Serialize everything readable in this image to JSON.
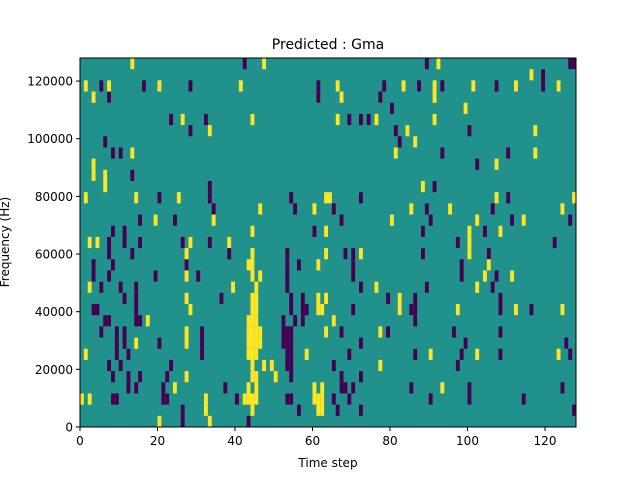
{
  "chart_data": {
    "type": "heatmap",
    "title": "Predicted : Gma",
    "xlabel": "Time step",
    "ylabel": "Frequency (Hz)",
    "xlim": [
      0,
      128
    ],
    "ylim": [
      0,
      128000
    ],
    "n_time_steps": 128,
    "n_freq_bins": 33,
    "xticks": [
      0,
      20,
      40,
      60,
      80,
      100,
      120
    ],
    "yticks": [
      0,
      20000,
      40000,
      60000,
      80000,
      100000,
      120000
    ],
    "colors": {
      "background": "#21918c",
      "low": "#440154",
      "high": "#fde725"
    },
    "value_levels": {
      "background": 0,
      "low": -1,
      "high": 1
    },
    "rows_top_to_bottom": {
      "low": [
        [
          42,
          89,
          126,
          127
        ],
        [
          119
        ],
        [
          5,
          16,
          28,
          61,
          78,
          87,
          93,
          107,
          119
        ],
        [
          7,
          61,
          77
        ],
        [
          80
        ],
        [
          23,
          32,
          69,
          72,
          74
        ],
        [
          28,
          81,
          100
        ],
        [
          6,
          82
        ],
        [
          8,
          10,
          93,
          110
        ],
        [
          102
        ],
        [
          13
        ],
        [
          33,
          91
        ],
        [
          20,
          33,
          54,
          72,
          110
        ],
        [
          34,
          55,
          65,
          89,
          106
        ],
        [
          15,
          24,
          67,
          90,
          111,
          126
        ],
        [
          8,
          11,
          60,
          88,
          104
        ],
        [
          7,
          11,
          15,
          26,
          33,
          97,
          122
        ],
        [
          7,
          13,
          38,
          53,
          68,
          70,
          88,
          105
        ],
        [
          3,
          8,
          27,
          53,
          56,
          70,
          98
        ],
        [
          3,
          7,
          19,
          30,
          53,
          70,
          98,
          107
        ],
        [
          5,
          10,
          14,
          53,
          72,
          89,
          106
        ],
        [
          11,
          14,
          36,
          54,
          57,
          79,
          86,
          108
        ],
        [
          3,
          4,
          14,
          54,
          57,
          58,
          70,
          85,
          86,
          108,
          116
        ],
        [
          6,
          7,
          14,
          15,
          52,
          55,
          57,
          86
        ],
        [
          5,
          9,
          11,
          31,
          52,
          53,
          54,
          67,
          79,
          96,
          108
        ],
        [
          9,
          11,
          20,
          31,
          52,
          53,
          54,
          72,
          99,
          125
        ],
        [
          9,
          12,
          31,
          53,
          54,
          69,
          86,
          98,
          108,
          126
        ],
        [
          7,
          10,
          23,
          53,
          54,
          65,
          97
        ],
        [
          8,
          12,
          15,
          22,
          54,
          67,
          72
        ],
        [
          12,
          14,
          21,
          37,
          67,
          68,
          70,
          85,
          100,
          124
        ],
        [
          8,
          9,
          21,
          22,
          40,
          53,
          54,
          65,
          69,
          90,
          100,
          114
        ],
        [
          26,
          56,
          66,
          72,
          127
        ],
        [
          26,
          43
        ]
      ],
      "high": [
        [
          13,
          47,
          92
        ],
        [
          116
        ],
        [
          1,
          7,
          20,
          41,
          66,
          83,
          91,
          101,
          112,
          123
        ],
        [
          3,
          67,
          91
        ],
        [
          99
        ],
        [
          26,
          44,
          66,
          76,
          91
        ],
        [
          33,
          84,
          117
        ],
        [
          86
        ],
        [
          13,
          81,
          117
        ],
        [
          3,
          107
        ],
        [
          3,
          6
        ],
        [
          6,
          88
        ],
        [
          1,
          14,
          25,
          63,
          64,
          107,
          127
        ],
        [
          46,
          60,
          85,
          95,
          124
        ],
        [
          19,
          34,
          80,
          102,
          114
        ],
        [
          44,
          63,
          100,
          108
        ],
        [
          2,
          4,
          28,
          38,
          100
        ],
        [
          27,
          44,
          63,
          72,
          100
        ],
        [
          43,
          44,
          61,
          105
        ],
        [
          27,
          44,
          46,
          104,
          111
        ],
        [
          2,
          39,
          45,
          76,
          102
        ],
        [
          27,
          44,
          45,
          61,
          63,
          82
        ],
        [
          28,
          44,
          45,
          61,
          62,
          82,
          97,
          112,
          124
        ],
        [
          17,
          43,
          44,
          45,
          65
        ],
        [
          27,
          43,
          44,
          45,
          46,
          63,
          77
        ],
        [
          14,
          27,
          43,
          44,
          45,
          46
        ],
        [
          1,
          43,
          44,
          45,
          58,
          90,
          102,
          123
        ],
        [
          44,
          47,
          49,
          77
        ],
        [
          27,
          44,
          45,
          50
        ],
        [
          24,
          43,
          45,
          60,
          62,
          93
        ],
        [
          0,
          2,
          32,
          42,
          43,
          44,
          45,
          60,
          61,
          62
        ],
        [
          32,
          44,
          61,
          62
        ],
        [
          20,
          33
        ]
      ]
    }
  }
}
